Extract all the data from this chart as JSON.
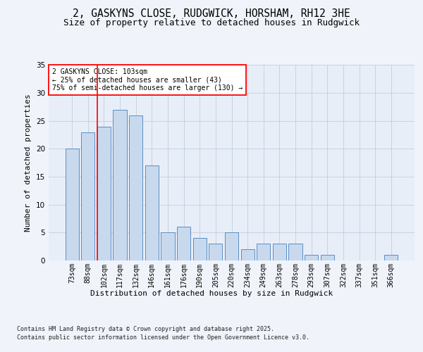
{
  "title1": "2, GASKYNS CLOSE, RUDGWICK, HORSHAM, RH12 3HE",
  "title2": "Size of property relative to detached houses in Rudgwick",
  "xlabel": "Distribution of detached houses by size in Rudgwick",
  "ylabel": "Number of detached properties",
  "categories": [
    "73sqm",
    "88sqm",
    "102sqm",
    "117sqm",
    "132sqm",
    "146sqm",
    "161sqm",
    "176sqm",
    "190sqm",
    "205sqm",
    "220sqm",
    "234sqm",
    "249sqm",
    "263sqm",
    "278sqm",
    "293sqm",
    "307sqm",
    "322sqm",
    "337sqm",
    "351sqm",
    "366sqm"
  ],
  "values": [
    20,
    23,
    24,
    27,
    26,
    17,
    5,
    6,
    4,
    3,
    5,
    2,
    3,
    3,
    3,
    1,
    1,
    0,
    0,
    0,
    1
  ],
  "bar_color": "#c8d9ee",
  "bar_edge_color": "#5b8ec4",
  "annotation_line1": "2 GASKYNS CLOSE: 103sqm",
  "annotation_line2": "← 25% of detached houses are smaller (43)",
  "annotation_line3": "75% of semi-detached houses are larger (130) →",
  "footnote1": "Contains HM Land Registry data © Crown copyright and database right 2025.",
  "footnote2": "Contains public sector information licensed under the Open Government Licence v3.0.",
  "ylim": [
    0,
    35
  ],
  "yticks": [
    0,
    5,
    10,
    15,
    20,
    25,
    30,
    35
  ],
  "title_fontsize": 10.5,
  "subtitle_fontsize": 9,
  "axis_label_fontsize": 8,
  "tick_fontsize": 7,
  "annotation_fontsize": 7,
  "footnote_fontsize": 6
}
